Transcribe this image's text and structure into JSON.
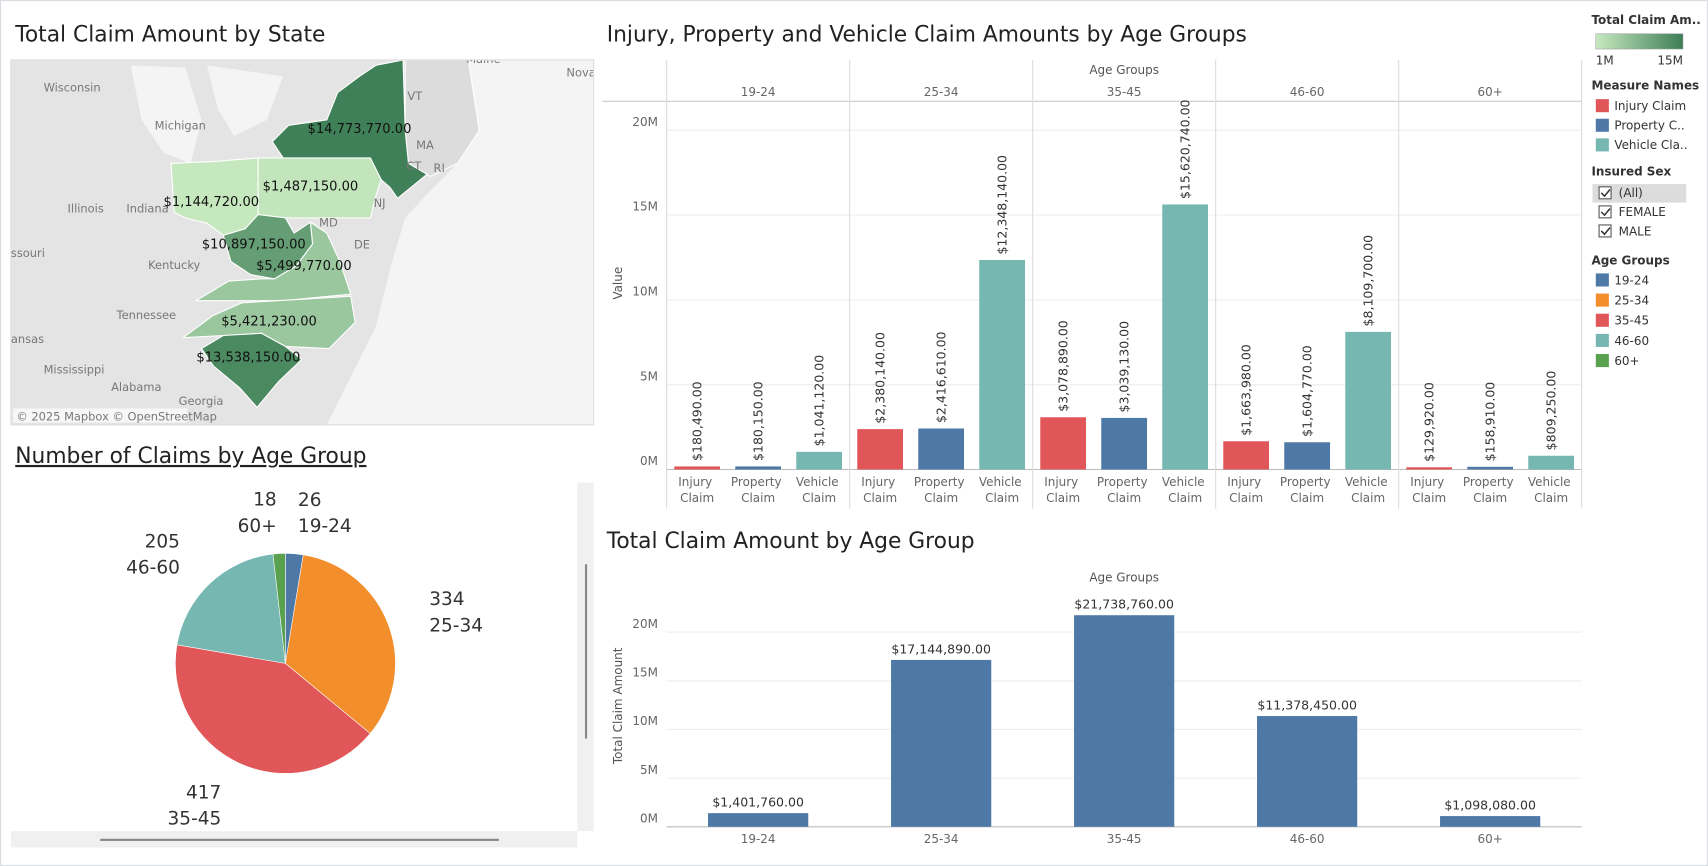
{
  "legend_panel": {
    "color_title": "Total Claim Am..",
    "measure_title": "Measure Names",
    "measure_names": [
      "Injury Claim",
      "Property C..",
      "Vehicle Cla.."
    ],
    "filter_title": "Insured Sex",
    "filter_options": [
      "(All)",
      "FEMALE",
      "MALE"
    ],
    "age_title": "Age Groups"
  },
  "chart_data": [
    {
      "type": "map",
      "title": "Total Claim Amount by State",
      "values": [
        1144720,
        1487150,
        14773770,
        10897150,
        5499770,
        5421230,
        13538150
      ],
      "value_labels": [
        "$1,144,720.00",
        "$1,487,150.00",
        "$14,773,770.00",
        "$10,897,150.00",
        "$5,499,770.00",
        "$5,421,230.00",
        "$13,538,150.00"
      ],
      "colorlim": [
        1000000,
        15000000
      ],
      "color_ticks": [
        {
          "value": 1000000,
          "label": "1M"
        },
        {
          "value": 15000000,
          "label": "15M"
        }
      ],
      "colors": [
        "#c7e9c0",
        "#3d7e56"
      ],
      "place_labels": [
        "Wisconsin",
        "Michigan",
        "Illinois",
        "Indiana",
        "ssouri",
        "Kentucky",
        "Tennessee",
        "ansas",
        "Mississippi",
        "Alabama",
        "Georgia",
        "VT",
        "MA",
        "CT",
        "RI",
        "NJ",
        "MD",
        "DE",
        "Maine",
        "Nova"
      ],
      "attribution": "© 2025 Mapbox © OpenStreetMap"
    },
    {
      "type": "grouped_bar",
      "title": "Injury, Property and Vehicle Claim Amounts by Age Groups",
      "x_label": "Age Groups",
      "y_label": "Value",
      "categories": [
        "19-24",
        "25-34",
        "35-45",
        "46-60",
        "60+"
      ],
      "series": [
        {
          "name": "Injury Claim",
          "color": "#e15759",
          "values": [
            180490,
            2380140,
            3078890,
            1663980,
            129920
          ],
          "value_labels": [
            "$180,490.00",
            "$2,380,140.00",
            "$3,078,890.00",
            "$1,663,980.00",
            "$129,920.00"
          ]
        },
        {
          "name": "Property Claim",
          "color": "#4e79a7",
          "values": [
            180150,
            2416610,
            3039130,
            1604770,
            158910
          ],
          "value_labels": [
            "$180,150.00",
            "$2,416,610.00",
            "$3,039,130.00",
            "$1,604,770.00",
            "$158,910.00"
          ]
        },
        {
          "name": "Vehicle Claim",
          "color": "#76b7b2",
          "values": [
            1041120,
            12348140,
            15620740,
            8109700,
            809250
          ],
          "value_labels": [
            "$1,041,120.00",
            "$12,348,140.00",
            "$15,620,740.00",
            "$8,109,700.00",
            "$809,250.00"
          ]
        }
      ],
      "ylim": [
        0,
        21700000
      ],
      "yticks": [
        {
          "value": 0,
          "label": "0M"
        },
        {
          "value": 5000000,
          "label": "5M"
        },
        {
          "value": 10000000,
          "label": "10M"
        },
        {
          "value": 15000000,
          "label": "15M"
        },
        {
          "value": 20000000,
          "label": "20M"
        }
      ]
    },
    {
      "type": "pie",
      "title": "Number of Claims by Age Group",
      "categories": [
        "19-24",
        "25-34",
        "35-45",
        "46-60",
        "60+"
      ],
      "values": [
        26,
        334,
        417,
        205,
        18
      ],
      "colors": [
        "#4e79a7",
        "#f28e2b",
        "#e15759",
        "#76b7b2",
        "#59a14f"
      ]
    },
    {
      "type": "bar",
      "title": "Total Claim Amount by Age Group",
      "x_label": "Age Groups",
      "y_label": "Total Claim Amount",
      "categories": [
        "19-24",
        "25-34",
        "35-45",
        "46-60",
        "60+"
      ],
      "values": [
        1401760,
        17144890,
        21738760,
        11378450,
        1098080
      ],
      "value_labels": [
        "$1,401,760.00",
        "$17,144,890.00",
        "$21,738,760.00",
        "$11,378,450.00",
        "$1,098,080.00"
      ],
      "color": "#4e79a7",
      "ylim": [
        0,
        24400000
      ],
      "yticks": [
        {
          "value": 0,
          "label": "0M"
        },
        {
          "value": 5000000,
          "label": "5M"
        },
        {
          "value": 10000000,
          "label": "10M"
        },
        {
          "value": 15000000,
          "label": "15M"
        },
        {
          "value": 20000000,
          "label": "20M"
        }
      ]
    }
  ]
}
